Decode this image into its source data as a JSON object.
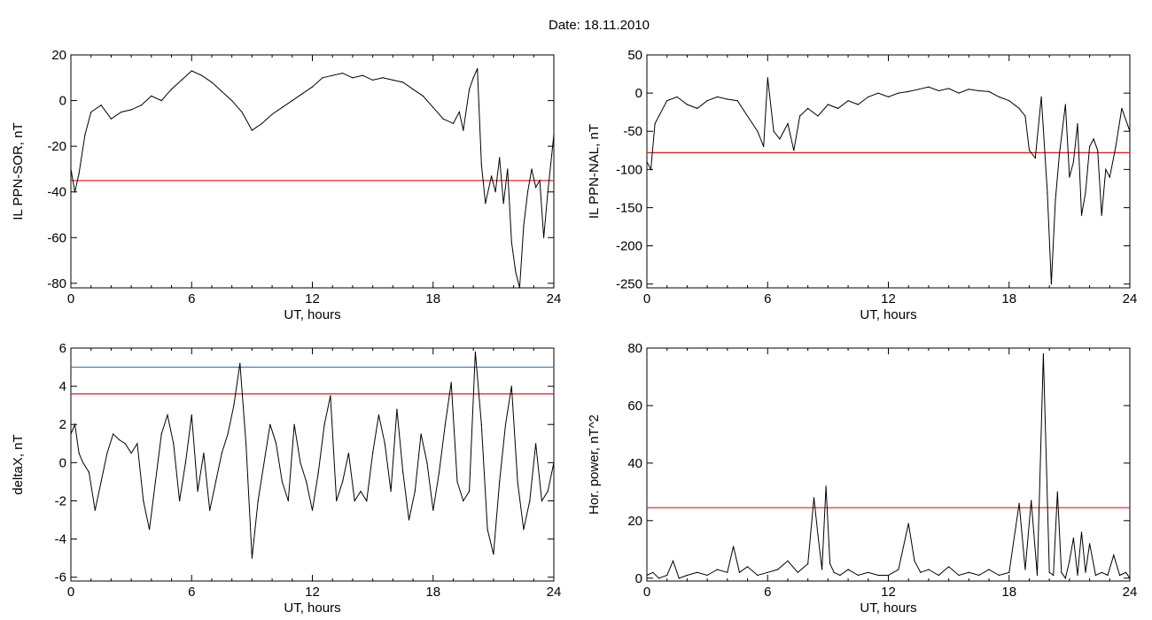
{
  "header": {
    "title": "Date:  18.11.2010"
  },
  "colors": {
    "trace": "#000000",
    "threshold_red": "#e41a1c",
    "threshold_blue": "#2b7bd3",
    "event_blue": "#1f6fd0",
    "marker_green": "#2fbf2f"
  },
  "chart_data": [
    {
      "type": "line",
      "xlabel": "UT, hours",
      "ylabel": "IL PPN-SOR, nT",
      "xlim": [
        0,
        24
      ],
      "ylim": [
        -82,
        20
      ],
      "xticks": [
        0,
        6,
        12,
        18,
        24
      ],
      "yticks": [
        20,
        0,
        -20,
        -40,
        -60,
        -80
      ],
      "x": [
        0,
        0.2,
        0.4,
        0.7,
        1.0,
        1.5,
        2.0,
        2.5,
        3.0,
        3.5,
        4.0,
        4.5,
        5.0,
        5.5,
        6.0,
        6.5,
        7.0,
        7.5,
        8.0,
        8.5,
        9.0,
        9.5,
        10.0,
        10.5,
        11.0,
        11.5,
        12.0,
        12.5,
        13.0,
        13.5,
        14.0,
        14.5,
        15.0,
        15.5,
        16.0,
        16.5,
        17.0,
        17.5,
        18.0,
        18.5,
        19.0,
        19.3,
        19.5,
        19.8,
        20.0,
        20.2,
        20.4,
        20.6,
        20.9,
        21.1,
        21.3,
        21.5,
        21.7,
        21.9,
        22.1,
        22.3,
        22.5,
        22.7,
        22.9,
        23.1,
        23.3,
        23.5,
        23.7,
        24.0
      ],
      "y": [
        -30,
        -40,
        -32,
        -15,
        -5,
        -2,
        -8,
        -5,
        -4,
        -2,
        2,
        0,
        5,
        9,
        13,
        11,
        8,
        4,
        0,
        -5,
        -13,
        -10,
        -6,
        -3,
        0,
        3,
        6,
        10,
        11,
        12,
        10,
        11,
        9,
        10,
        9,
        8,
        5,
        2,
        -3,
        -8,
        -10,
        -5,
        -13,
        5,
        10,
        14,
        -28,
        -45,
        -33,
        -40,
        -25,
        -45,
        -30,
        -62,
        -75,
        -82,
        -55,
        -40,
        -30,
        -38,
        -35,
        -60,
        -40,
        -15
      ],
      "thresholds": [
        {
          "value": -35,
          "color": "#e41a1c"
        }
      ]
    },
    {
      "type": "line",
      "xlabel": "UT, hours",
      "ylabel": "IL PPN-NAL, nT",
      "xlim": [
        0,
        24
      ],
      "ylim": [
        -255,
        50
      ],
      "xticks": [
        0,
        6,
        12,
        18,
        24
      ],
      "yticks": [
        50,
        0,
        -50,
        -100,
        -150,
        -200,
        -250
      ],
      "x": [
        0,
        0.2,
        0.4,
        0.6,
        1.0,
        1.5,
        2.0,
        2.5,
        3.0,
        3.5,
        4.0,
        4.5,
        5.0,
        5.5,
        5.8,
        6.0,
        6.3,
        6.6,
        7.0,
        7.3,
        7.6,
        8.0,
        8.5,
        9.0,
        9.5,
        10.0,
        10.5,
        11.0,
        11.5,
        12.0,
        12.5,
        13.0,
        13.5,
        14.0,
        14.5,
        15.0,
        15.5,
        16.0,
        16.5,
        17.0,
        17.5,
        18.0,
        18.5,
        18.8,
        19.0,
        19.3,
        19.6,
        19.9,
        20.1,
        20.3,
        20.5,
        20.8,
        21.0,
        21.2,
        21.4,
        21.6,
        21.8,
        22.0,
        22.2,
        22.4,
        22.6,
        22.8,
        23.0,
        23.3,
        23.6,
        24.0
      ],
      "y": [
        -90,
        -100,
        -40,
        -30,
        -10,
        -5,
        -15,
        -20,
        -10,
        -5,
        -8,
        -10,
        -30,
        -50,
        -70,
        20,
        -50,
        -60,
        -40,
        -75,
        -30,
        -20,
        -30,
        -15,
        -20,
        -10,
        -15,
        -5,
        0,
        -5,
        0,
        2,
        5,
        8,
        3,
        6,
        0,
        5,
        3,
        2,
        -5,
        -10,
        -20,
        -30,
        -75,
        -85,
        -5,
        -130,
        -250,
        -140,
        -80,
        -15,
        -110,
        -90,
        -40,
        -160,
        -130,
        -70,
        -60,
        -75,
        -160,
        -100,
        -110,
        -70,
        -20,
        -50
      ],
      "thresholds": [
        {
          "value": -78,
          "color": "#e41a1c"
        }
      ]
    },
    {
      "type": "line",
      "xlabel": "UT, hours",
      "ylabel": "deltaX, nT",
      "xlim": [
        0,
        24
      ],
      "ylim": [
        -6.2,
        6
      ],
      "xticks": [
        0,
        6,
        12,
        18,
        24
      ],
      "yticks": [
        6,
        4,
        2,
        0,
        -2,
        -4,
        -6
      ],
      "x": [
        0,
        0.2,
        0.4,
        0.6,
        0.9,
        1.2,
        1.5,
        1.8,
        2.1,
        2.4,
        2.7,
        3.0,
        3.3,
        3.6,
        3.9,
        4.2,
        4.5,
        4.8,
        5.1,
        5.4,
        5.7,
        6.0,
        6.3,
        6.6,
        6.9,
        7.2,
        7.5,
        7.8,
        8.1,
        8.4,
        8.7,
        9.0,
        9.3,
        9.6,
        9.9,
        10.2,
        10.5,
        10.8,
        11.1,
        11.4,
        11.7,
        12.0,
        12.3,
        12.6,
        12.9,
        13.2,
        13.5,
        13.8,
        14.1,
        14.4,
        14.7,
        15.0,
        15.3,
        15.6,
        15.9,
        16.2,
        16.5,
        16.8,
        17.1,
        17.4,
        17.7,
        18.0,
        18.3,
        18.6,
        18.9,
        19.2,
        19.5,
        19.8,
        20.1,
        20.4,
        20.7,
        21.0,
        21.3,
        21.6,
        21.9,
        22.2,
        22.5,
        22.8,
        23.1,
        23.4,
        23.7,
        24.0
      ],
      "y": [
        1.5,
        2.0,
        0.5,
        0,
        -0.5,
        -2.5,
        -1.0,
        0.5,
        1.5,
        1.2,
        1.0,
        0.5,
        1.0,
        -2.0,
        -3.5,
        -1.0,
        1.5,
        2.5,
        1.0,
        -2.0,
        0,
        2.5,
        -1.5,
        0.5,
        -2.5,
        -1.0,
        0.5,
        1.5,
        3.0,
        5.2,
        1.0,
        -5.0,
        -2.0,
        0,
        2.0,
        1.0,
        -1.0,
        -2.0,
        2.0,
        0,
        -1.0,
        -2.5,
        -0.5,
        2.0,
        3.5,
        -2.0,
        -1.0,
        0.5,
        -2.0,
        -1.5,
        -2.0,
        0.5,
        2.5,
        1.0,
        -1.5,
        2.8,
        -0.5,
        -3.0,
        -1.5,
        1.5,
        0,
        -2.5,
        -0.5,
        2.0,
        4.2,
        -1.0,
        -2.0,
        -1.5,
        5.8,
        2.0,
        -3.5,
        -4.8,
        -1.0,
        2.0,
        4.0,
        -1.0,
        -3.5,
        -2.0,
        1.0,
        -2.0,
        -1.5,
        0
      ],
      "thresholds": [
        {
          "value": 5.0,
          "color": "#2b7bd3"
        },
        {
          "value": 3.6,
          "color": "#e41a1c"
        }
      ]
    },
    {
      "type": "line",
      "xlabel": "UT, hours",
      "ylabel": "Hor. power, nT^2",
      "xlim": [
        0,
        24
      ],
      "ylim": [
        -1,
        80
      ],
      "xticks": [
        0,
        6,
        12,
        18,
        24
      ],
      "yticks": [
        80,
        60,
        40,
        20,
        0
      ],
      "x": [
        0,
        0.3,
        0.6,
        1.0,
        1.3,
        1.6,
        2.0,
        2.5,
        3.0,
        3.5,
        4.0,
        4.3,
        4.6,
        5.0,
        5.5,
        6.0,
        6.5,
        7.0,
        7.5,
        8.0,
        8.3,
        8.5,
        8.7,
        8.9,
        9.1,
        9.3,
        9.6,
        10.0,
        10.5,
        11.0,
        11.5,
        12.0,
        12.5,
        13.0,
        13.3,
        13.6,
        14.0,
        14.5,
        15.0,
        15.5,
        16.0,
        16.5,
        17.0,
        17.5,
        18.0,
        18.5,
        18.8,
        19.1,
        19.4,
        19.7,
        20.0,
        20.2,
        20.4,
        20.6,
        20.8,
        21.0,
        21.2,
        21.4,
        21.6,
        21.8,
        22.0,
        22.3,
        22.6,
        22.9,
        23.2,
        23.5,
        23.8,
        24.0
      ],
      "y": [
        1,
        2,
        0,
        1,
        6,
        0,
        1,
        2,
        1,
        3,
        2,
        11,
        2,
        4,
        1,
        2,
        3,
        6,
        2,
        5,
        28,
        15,
        3,
        32,
        5,
        2,
        1,
        3,
        1,
        2,
        1,
        1,
        3,
        19,
        6,
        2,
        3,
        1,
        4,
        1,
        2,
        1,
        3,
        1,
        2,
        26,
        3,
        27,
        1,
        78,
        2,
        1,
        30,
        2,
        0,
        6,
        14,
        1,
        16,
        2,
        12,
        1,
        2,
        1,
        8,
        1,
        2,
        0
      ],
      "thresholds": [
        {
          "value": 24.5,
          "color": "#e41a1c"
        }
      ]
    }
  ]
}
